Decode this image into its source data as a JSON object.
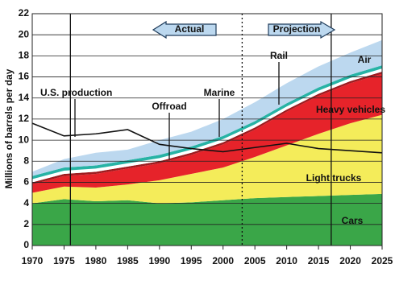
{
  "chart_data": {
    "type": "area",
    "stacked": true,
    "y_label": "Millions of barrels per day",
    "x": [
      1970,
      1975,
      1980,
      1985,
      1990,
      1995,
      2000,
      2005,
      2010,
      2015,
      2020,
      2025
    ],
    "series": [
      {
        "name": "Cars",
        "color": "#3aa648",
        "values": [
          4.0,
          4.4,
          4.2,
          4.3,
          4.0,
          4.1,
          4.3,
          4.5,
          4.6,
          4.7,
          4.8,
          4.9
        ]
      },
      {
        "name": "Light trucks",
        "color": "#f4ec5a",
        "values": [
          1.0,
          1.2,
          1.3,
          1.5,
          2.2,
          2.7,
          3.1,
          3.9,
          4.9,
          5.9,
          6.8,
          7.5
        ]
      },
      {
        "name": "Heavy vehicles",
        "color": "#e6232a",
        "values": [
          0.8,
          1.0,
          1.3,
          1.5,
          1.6,
          1.8,
          2.2,
          2.6,
          3.2,
          3.6,
          3.8,
          3.9
        ]
      },
      {
        "name": "Offroad",
        "color": "#9e1b1f",
        "values": [
          0.2,
          0.2,
          0.2,
          0.2,
          0.2,
          0.2,
          0.2,
          0.2,
          0.2,
          0.2,
          0.2,
          0.2
        ]
      },
      {
        "name": "Marine",
        "color": "#ffffff",
        "values": [
          0.3,
          0.3,
          0.3,
          0.3,
          0.3,
          0.3,
          0.3,
          0.3,
          0.3,
          0.3,
          0.3,
          0.3
        ]
      },
      {
        "name": "Rail",
        "color": "#27b3a5",
        "values": [
          0.3,
          0.3,
          0.3,
          0.3,
          0.3,
          0.3,
          0.3,
          0.3,
          0.3,
          0.3,
          0.3,
          0.3
        ]
      },
      {
        "name": "Air",
        "color": "#bcd8ef",
        "values": [
          0.4,
          0.8,
          1.2,
          1.0,
          1.4,
          1.4,
          1.6,
          1.8,
          1.9,
          2.0,
          2.1,
          2.4
        ]
      },
      {
        "name": "U.S. production",
        "type": "line",
        "color": "#111111",
        "values": [
          11.6,
          10.4,
          10.6,
          11.0,
          9.6,
          9.2,
          8.9,
          9.3,
          9.7,
          9.2,
          9.0,
          8.8
        ]
      }
    ],
    "vlines": [
      {
        "x": 1976,
        "style": "solid"
      },
      {
        "x": 2003,
        "style": "dotted"
      },
      {
        "x": 2017,
        "style": "solid"
      }
    ],
    "annotations": [
      "Actual",
      "Projection"
    ],
    "xlim": [
      1970,
      2025
    ],
    "xticks": [
      1970,
      1975,
      1980,
      1985,
      1990,
      1995,
      2000,
      2005,
      2010,
      2015,
      2020,
      2025
    ],
    "ylim": [
      0,
      22
    ],
    "yticks": [
      0,
      2,
      4,
      6,
      8,
      10,
      12,
      14,
      16,
      18,
      20,
      22
    ],
    "grid": true
  }
}
